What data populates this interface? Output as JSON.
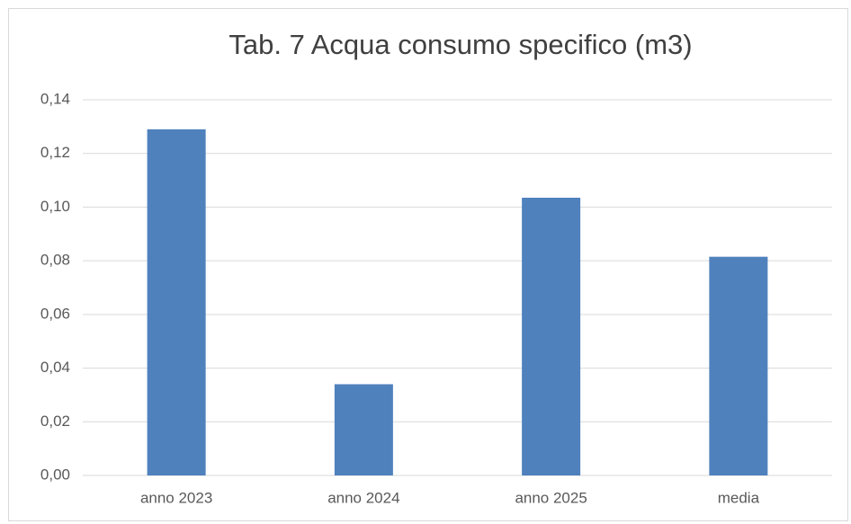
{
  "chart_data": {
    "type": "bar",
    "title": "Tab. 7 Acqua consumo specifico (m3)",
    "categories": [
      "anno 2023",
      "anno 2024",
      "anno 2025",
      "media"
    ],
    "values": [
      0.129,
      0.034,
      0.1035,
      0.0815
    ],
    "color": "#4f81bd",
    "ylim": [
      0,
      0.14
    ],
    "yticks": [
      {
        "value": 0,
        "label": "0,00"
      },
      {
        "value": 0.02,
        "label": "0,02"
      },
      {
        "value": 0.04,
        "label": "0,04"
      },
      {
        "value": 0.06,
        "label": "0,06"
      },
      {
        "value": 0.08,
        "label": "0,08"
      },
      {
        "value": 0.1,
        "label": "0,10"
      },
      {
        "value": 0.12,
        "label": "0,12"
      },
      {
        "value": 0.14,
        "label": "0,14"
      }
    ],
    "grid": true
  }
}
